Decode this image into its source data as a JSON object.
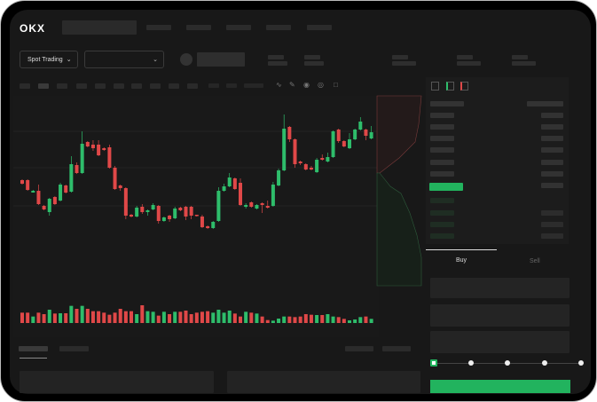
{
  "header": {
    "logo": "OKX",
    "nav_count": 5
  },
  "market_bar": {
    "mode_dropdown": "Spot Trading",
    "chevron_icon": "chevron-down-icon"
  },
  "toolbar": {
    "icons": [
      "line-icon",
      "pen-icon",
      "camera-icon",
      "target-icon",
      "expand-icon"
    ]
  },
  "orderbook": {
    "view_icons": [
      "both-sides-icon",
      "bids-only-icon",
      "asks-only-icon"
    ]
  },
  "trade_panel": {
    "tabs": [
      {
        "label": "Buy",
        "active": true
      },
      {
        "label": "Sell",
        "active": false
      }
    ],
    "slider_percent": 0,
    "slider_stops": 5
  },
  "colors": {
    "up": "#2ebd6b",
    "down": "#e04848",
    "accent": "#22b35e",
    "bg": "#181818"
  },
  "chart_data": {
    "type": "candlestick",
    "candles": [
      [
        67,
        63,
        68,
        62
      ],
      [
        67,
        56,
        68,
        55
      ],
      [
        53,
        55,
        56,
        53
      ],
      [
        55,
        40,
        62,
        39
      ],
      [
        38,
        34,
        39,
        33
      ],
      [
        31,
        46,
        47,
        27
      ],
      [
        48,
        40,
        49,
        39
      ],
      [
        44,
        62,
        64,
        43
      ],
      [
        61,
        53,
        62,
        52
      ],
      [
        54,
        85,
        94,
        53
      ],
      [
        84,
        75,
        87,
        74
      ],
      [
        75,
        108,
        122,
        74
      ],
      [
        110,
        105,
        111,
        104
      ],
      [
        107,
        103,
        112,
        100
      ],
      [
        107,
        95,
        112,
        94
      ],
      [
        103,
        101,
        104,
        100
      ],
      [
        104,
        81,
        107,
        80
      ],
      [
        81,
        57,
        83,
        56
      ],
      [
        61,
        58,
        62,
        55
      ],
      [
        58,
        27,
        59,
        23
      ],
      [
        28,
        26,
        29,
        25
      ],
      [
        26,
        36,
        38,
        25
      ],
      [
        37,
        31,
        40,
        29
      ],
      [
        31,
        33,
        34,
        27
      ],
      [
        34,
        39,
        41,
        33
      ],
      [
        38,
        21,
        39,
        18
      ],
      [
        21,
        25,
        26,
        20
      ],
      [
        27,
        23,
        28,
        20
      ],
      [
        24,
        35,
        37,
        23
      ],
      [
        36,
        33,
        37,
        32
      ],
      [
        37,
        26,
        38,
        22
      ],
      [
        37,
        27,
        38,
        23
      ],
      [
        28,
        27,
        28,
        26
      ],
      [
        26,
        14,
        28,
        13
      ],
      [
        15,
        13,
        16,
        12
      ],
      [
        13,
        20,
        21,
        12
      ],
      [
        21,
        55,
        59,
        20
      ],
      [
        55,
        60,
        63,
        54
      ],
      [
        60,
        70,
        75,
        59
      ],
      [
        69,
        57,
        70,
        56
      ],
      [
        64,
        39,
        69,
        38
      ],
      [
        37,
        39,
        41,
        35
      ],
      [
        42,
        37,
        43,
        36
      ],
      [
        35,
        39,
        40,
        34
      ],
      [
        41,
        39,
        42,
        30
      ],
      [
        38,
        36,
        44,
        35
      ],
      [
        38,
        62,
        65,
        37
      ],
      [
        61,
        78,
        80,
        60
      ],
      [
        78,
        125,
        141,
        77
      ],
      [
        127,
        113,
        128,
        110
      ],
      [
        113,
        85,
        114,
        81
      ],
      [
        88,
        86,
        89,
        84
      ],
      [
        85,
        79,
        86,
        78
      ],
      [
        81,
        79,
        83,
        78
      ],
      [
        76,
        90,
        92,
        75
      ],
      [
        92,
        90,
        96,
        89
      ],
      [
        88,
        93,
        98,
        87
      ],
      [
        93,
        122,
        123,
        92
      ],
      [
        124,
        111,
        125,
        109
      ],
      [
        111,
        105,
        112,
        104
      ],
      [
        103,
        113,
        120,
        102
      ],
      [
        113,
        124,
        125,
        112
      ],
      [
        124,
        133,
        138,
        123
      ],
      [
        124,
        117,
        125,
        112
      ],
      [
        114,
        121,
        128,
        113
      ]
    ],
    "volumes": [
      35,
      35,
      22,
      35,
      30,
      45,
      32,
      33,
      33,
      58,
      48,
      58,
      48,
      40,
      40,
      35,
      28,
      35,
      48,
      40,
      40,
      30,
      60,
      40,
      38,
      25,
      38,
      30,
      38,
      38,
      42,
      30,
      35,
      38,
      40,
      35,
      45,
      35,
      42,
      32,
      22,
      38,
      35,
      32,
      22,
      10,
      8,
      15,
      22,
      22,
      20,
      22,
      30,
      28,
      27,
      27,
      30,
      22,
      20,
      14,
      9,
      12,
      20,
      22,
      14
    ]
  }
}
